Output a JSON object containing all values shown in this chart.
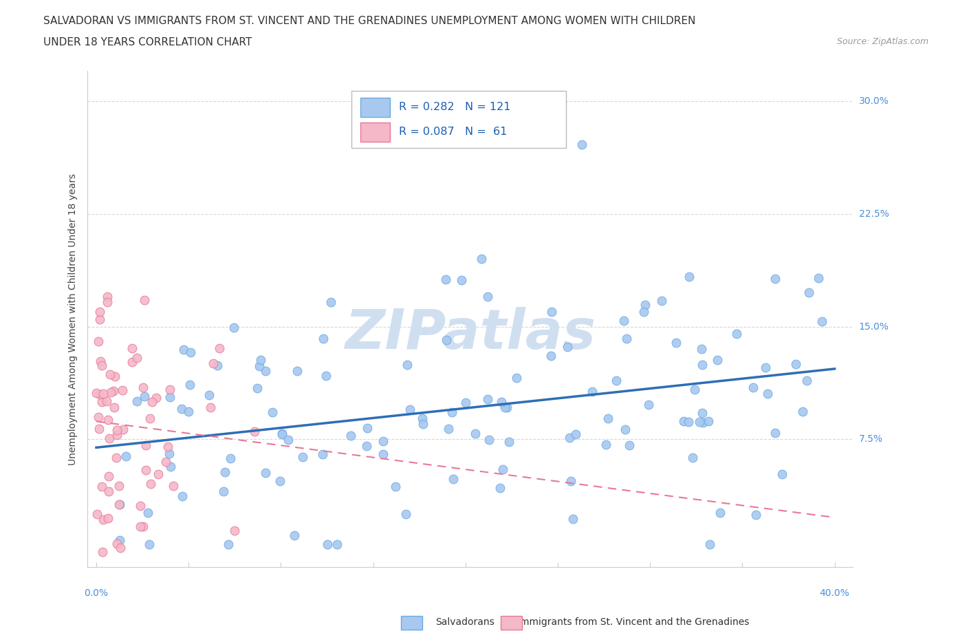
{
  "title_line1": "SALVADORAN VS IMMIGRANTS FROM ST. VINCENT AND THE GRENADINES UNEMPLOYMENT AMONG WOMEN WITH CHILDREN",
  "title_line2": "UNDER 18 YEARS CORRELATION CHART",
  "source_text": "Source: ZipAtlas.com",
  "xlabel_min": "0.0%",
  "xlabel_max": "40.0%",
  "ylabel": "Unemployment Among Women with Children Under 18 years",
  "ytick_labels": [
    "7.5%",
    "15.0%",
    "22.5%",
    "30.0%"
  ],
  "ytick_values": [
    0.075,
    0.15,
    0.225,
    0.3
  ],
  "xtick_values": [
    0.0,
    0.05,
    0.1,
    0.15,
    0.2,
    0.25,
    0.3,
    0.35,
    0.4
  ],
  "xlim": [
    -0.005,
    0.41
  ],
  "ylim": [
    -0.01,
    0.32
  ],
  "blue_R": 0.282,
  "blue_N": 121,
  "pink_R": 0.087,
  "pink_N": 61,
  "blue_color": "#a8c8f0",
  "pink_color": "#f4b8c8",
  "blue_edge_color": "#6aaae0",
  "pink_edge_color": "#e87898",
  "blue_line_color": "#2e6eb5",
  "pink_line_color": "#e87898",
  "tick_label_color": "#4a90d9",
  "watermark_color": "#d0dff0",
  "background_color": "#ffffff",
  "grid_color": "#d8d8d8",
  "spine_color": "#cccccc",
  "title_fontsize": 11,
  "source_fontsize": 9,
  "legend_R_color": "#1a5fb4",
  "legend_N_color": "#1a5fb4"
}
